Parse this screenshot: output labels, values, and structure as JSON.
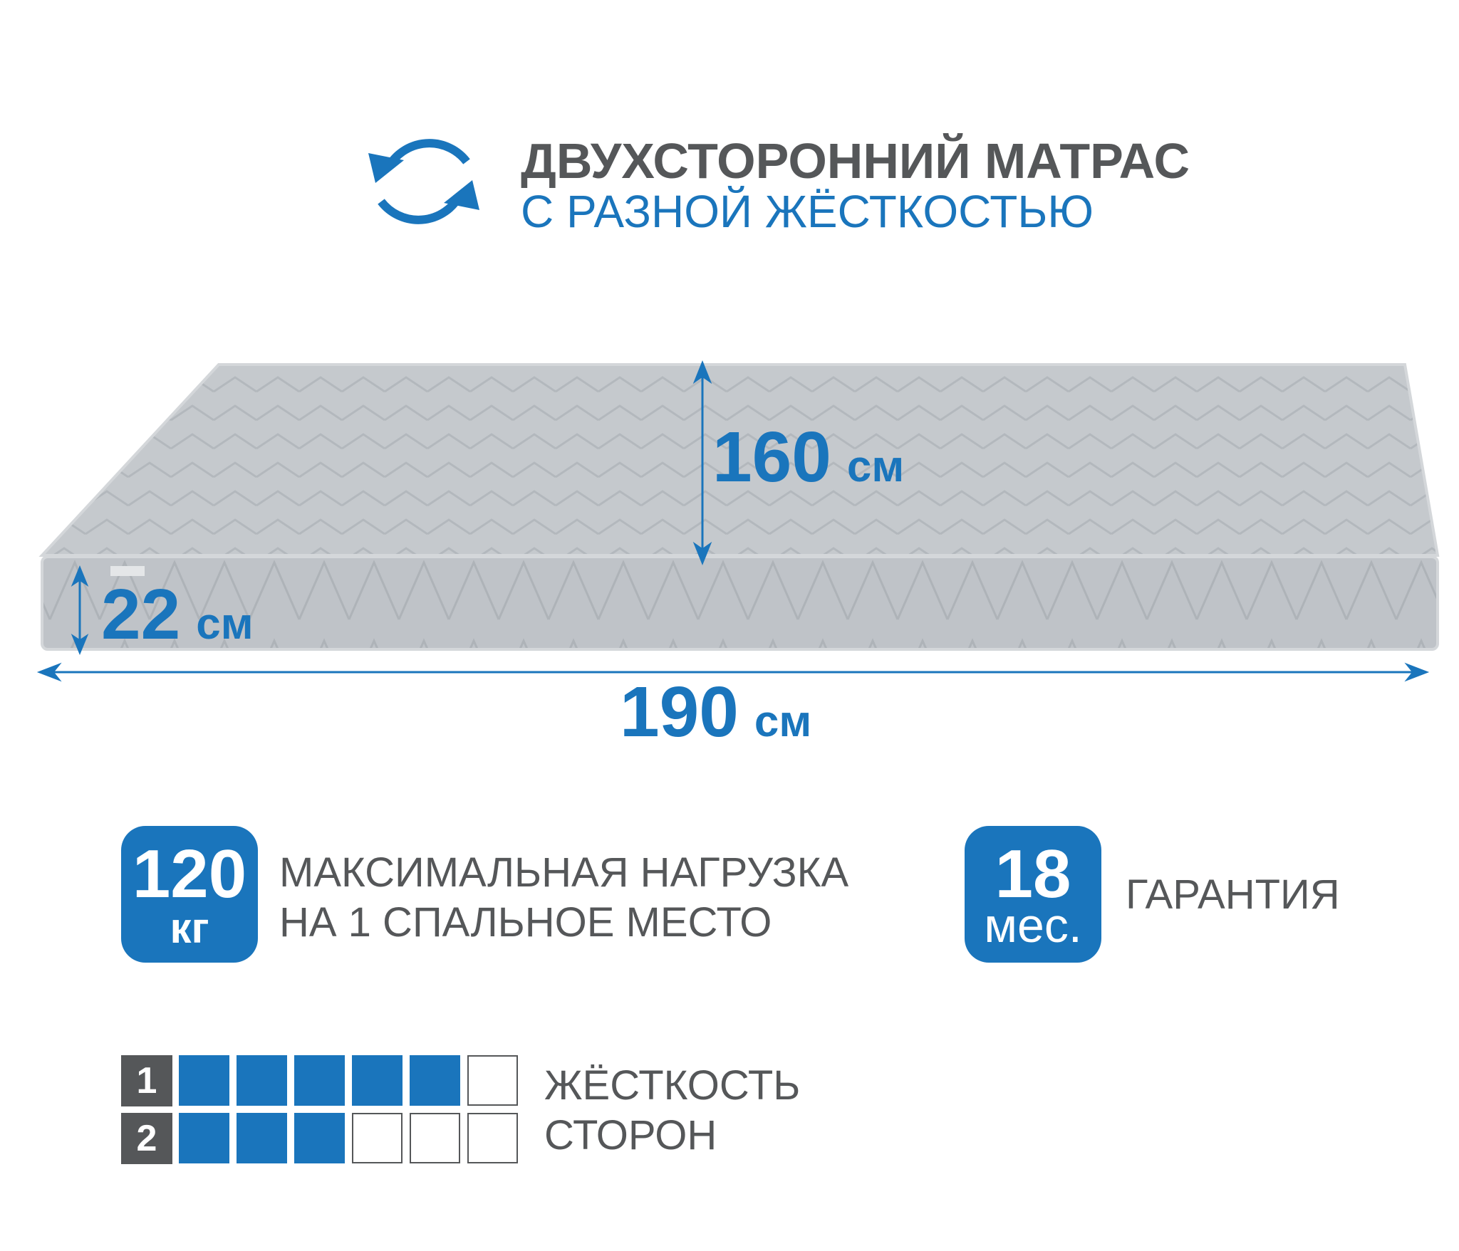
{
  "header": {
    "icon": "rotate-arrows-icon",
    "title_line1": "ДВУХСТОРОННИЙ МАТРАС",
    "title_line2": "С РАЗНОЙ ЖЁСТКОСТЬЮ"
  },
  "dimensions": {
    "width": {
      "value": "160",
      "unit": "см"
    },
    "height": {
      "value": "22",
      "unit": "см"
    },
    "length": {
      "value": "190",
      "unit": "см"
    }
  },
  "features": {
    "load": {
      "value": "120",
      "unit": "кг",
      "line1": "МАКСИМАЛЬНАЯ НАГРУЗКА",
      "line2": "НА 1 СПАЛЬНОЕ МЕСТО"
    },
    "warranty": {
      "value": "18",
      "unit": "мес.",
      "label": "ГАРАНТИЯ"
    }
  },
  "hardness": {
    "label_line1": "ЖЁСТКОСТЬ",
    "label_line2": "СТОРОН",
    "max": 6,
    "sides": [
      {
        "side": "1",
        "level": 5
      },
      {
        "side": "2",
        "level": 3
      }
    ]
  },
  "colors": {
    "accent": "#1a75bc",
    "text": "#555759",
    "mattress": "#c5c9cd"
  }
}
